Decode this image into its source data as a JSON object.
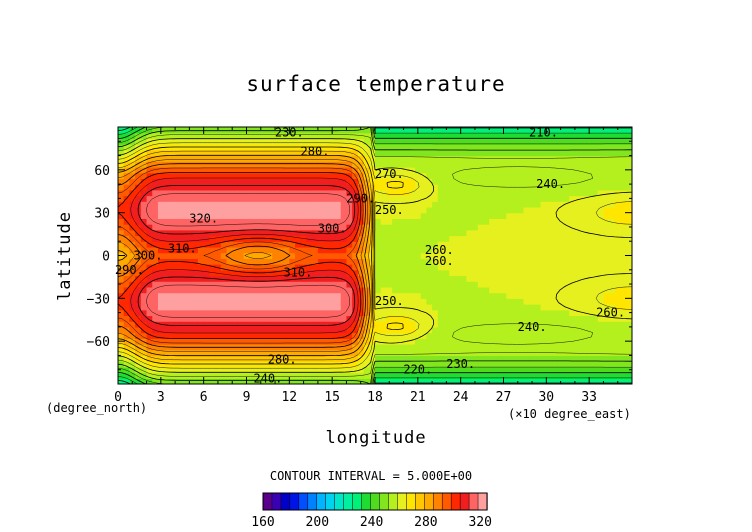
{
  "chart_data": {
    "type": "heatmap",
    "title": "surface temperature",
    "xlabel": "longitude",
    "ylabel": "latitude",
    "x_unit": "(×10 degree_east)",
    "y_unit": "(degree_north)",
    "xlim": [
      0,
      36
    ],
    "ylim": [
      -90,
      90
    ],
    "x_ticks": [
      "0",
      "3",
      "6",
      "9",
      "12",
      "15",
      "18",
      "21",
      "24",
      "27",
      "30",
      "33"
    ],
    "y_ticks": [
      "60",
      "30",
      "0",
      "−30",
      "−60"
    ],
    "contour_interval_text": "CONTOUR INTERVAL = 5.000E+00",
    "colorbar": {
      "range": [
        160,
        325
      ],
      "tick_labels": [
        "160",
        "200",
        "240",
        "280",
        "320"
      ],
      "colors": [
        "#5a008c",
        "#3c00b4",
        "#0000c8",
        "#0014e6",
        "#0050ff",
        "#0082ff",
        "#00b4ff",
        "#00d2f0",
        "#00e6c8",
        "#00f0a0",
        "#00f078",
        "#1edc32",
        "#50dc1e",
        "#82e61e",
        "#b4f01e",
        "#e6f01e",
        "#ffe600",
        "#ffc800",
        "#ffaa00",
        "#ff8200",
        "#ff5a00",
        "#ff2800",
        "#f01e1e",
        "#ff6464",
        "#ffa0a0"
      ]
    },
    "contour_labels": [
      {
        "text": "230.",
        "x": 12.0,
        "y": 86
      },
      {
        "text": "210.",
        "x": 29.8,
        "y": 86
      },
      {
        "text": "280.",
        "x": 13.8,
        "y": 73
      },
      {
        "text": "270.",
        "x": 19.0,
        "y": 57
      },
      {
        "text": "240.",
        "x": 30.3,
        "y": 50
      },
      {
        "text": "290.",
        "x": 17.0,
        "y": 40
      },
      {
        "text": "250.",
        "x": 19.0,
        "y": 32
      },
      {
        "text": "320.",
        "x": 6.0,
        "y": 26
      },
      {
        "text": "300.",
        "x": 15.0,
        "y": 19
      },
      {
        "text": "310.",
        "x": 4.5,
        "y": 5
      },
      {
        "text": "300.",
        "x": 2.1,
        "y": 0
      },
      {
        "text": "290.",
        "x": 0.8,
        "y": -10
      },
      {
        "text": "260.",
        "x": 22.5,
        "y": 4
      },
      {
        "text": "260.",
        "x": 22.5,
        "y": -4
      },
      {
        "text": "310.",
        "x": 12.6,
        "y": -12
      },
      {
        "text": "250.",
        "x": 19.0,
        "y": -32
      },
      {
        "text": "240.",
        "x": 29.0,
        "y": -50
      },
      {
        "text": "260.",
        "x": 34.5,
        "y": -40
      },
      {
        "text": "280.",
        "x": 11.5,
        "y": -73
      },
      {
        "text": "230.",
        "x": 24.0,
        "y": -76
      },
      {
        "text": "220.",
        "x": 21.0,
        "y": -80
      },
      {
        "text": "240.",
        "x": 10.5,
        "y": -86
      }
    ]
  }
}
